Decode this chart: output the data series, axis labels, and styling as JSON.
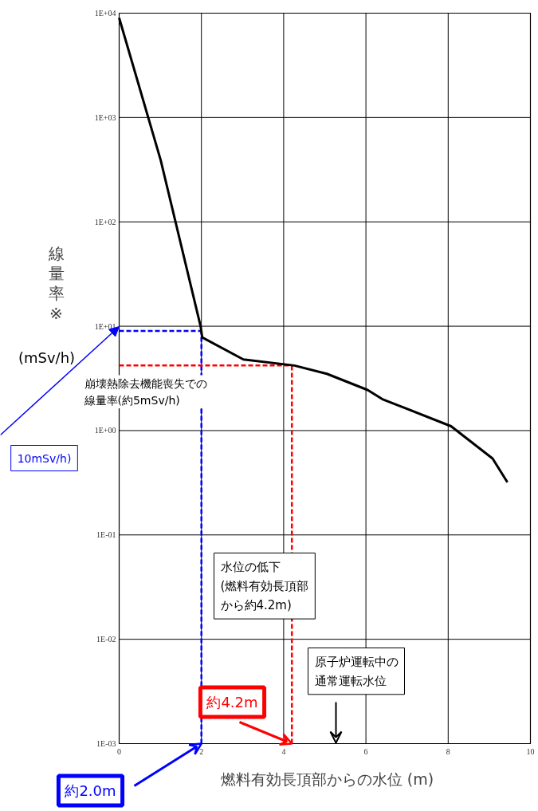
{
  "chart_data": {
    "type": "line",
    "xlabel": "燃料有効長頂部からの水位 (m)",
    "ylabel": "線量率※",
    "log": "y",
    "grid": true,
    "marker": "none",
    "line_style": "solid",
    "color": "#000000",
    "xlim": [
      0,
      10
    ],
    "xticks": [
      0,
      2,
      4,
      6,
      8,
      10
    ],
    "ylim": [
      0.001,
      10000
    ],
    "yticks": [
      {
        "value": 0.001,
        "label": "1E-03"
      },
      {
        "value": 0.01,
        "label": "1E-02"
      },
      {
        "value": 0.1,
        "label": "1E-01"
      },
      {
        "value": 1,
        "label": "1E+00"
      },
      {
        "value": 10,
        "label": "1E+01"
      },
      {
        "value": 100,
        "label": "1E+02"
      },
      {
        "value": 1000,
        "label": "1E+03"
      },
      {
        "value": 10000,
        "label": "1E+04"
      }
    ],
    "x": [
      0,
      1.01,
      1.98,
      2.02,
      3.02,
      4.26,
      5.05,
      6.04,
      6.4,
      8.07,
      9.08,
      9.44
    ],
    "values": [
      9000,
      390,
      10,
      7.8,
      4.8,
      4.2,
      3.5,
      2.45,
      2.0,
      1.1,
      0.54,
      0.32
    ],
    "ref_lines": [
      {
        "axis": "x",
        "value": 2,
        "color": "#0000ff",
        "line_style": "dashed"
      },
      {
        "axis": "y",
        "value": 9,
        "color": "#0000ff",
        "line_style": "dashed"
      },
      {
        "axis": "x",
        "value": 4.2,
        "color": "#ff0000",
        "line_style": "dashed"
      },
      {
        "axis": "y",
        "value": 4.2,
        "color": "#ff0000",
        "line_style": "dashed"
      }
    ],
    "annotations": [
      "(mSv/h)",
      "崩壊熱除去機能喪失での線量率(約5mSv/h)",
      "水位の低下(燃料有効長頂部から約4.2m)",
      "原子炉運転中の通常運転水位",
      {
        "text": "約4.2m",
        "x": 4.2,
        "y": 0.001
      },
      {
        "text": "約2.0m",
        "x": 2,
        "y": 0.001
      },
      "10mSv/h)"
    ]
  }
}
